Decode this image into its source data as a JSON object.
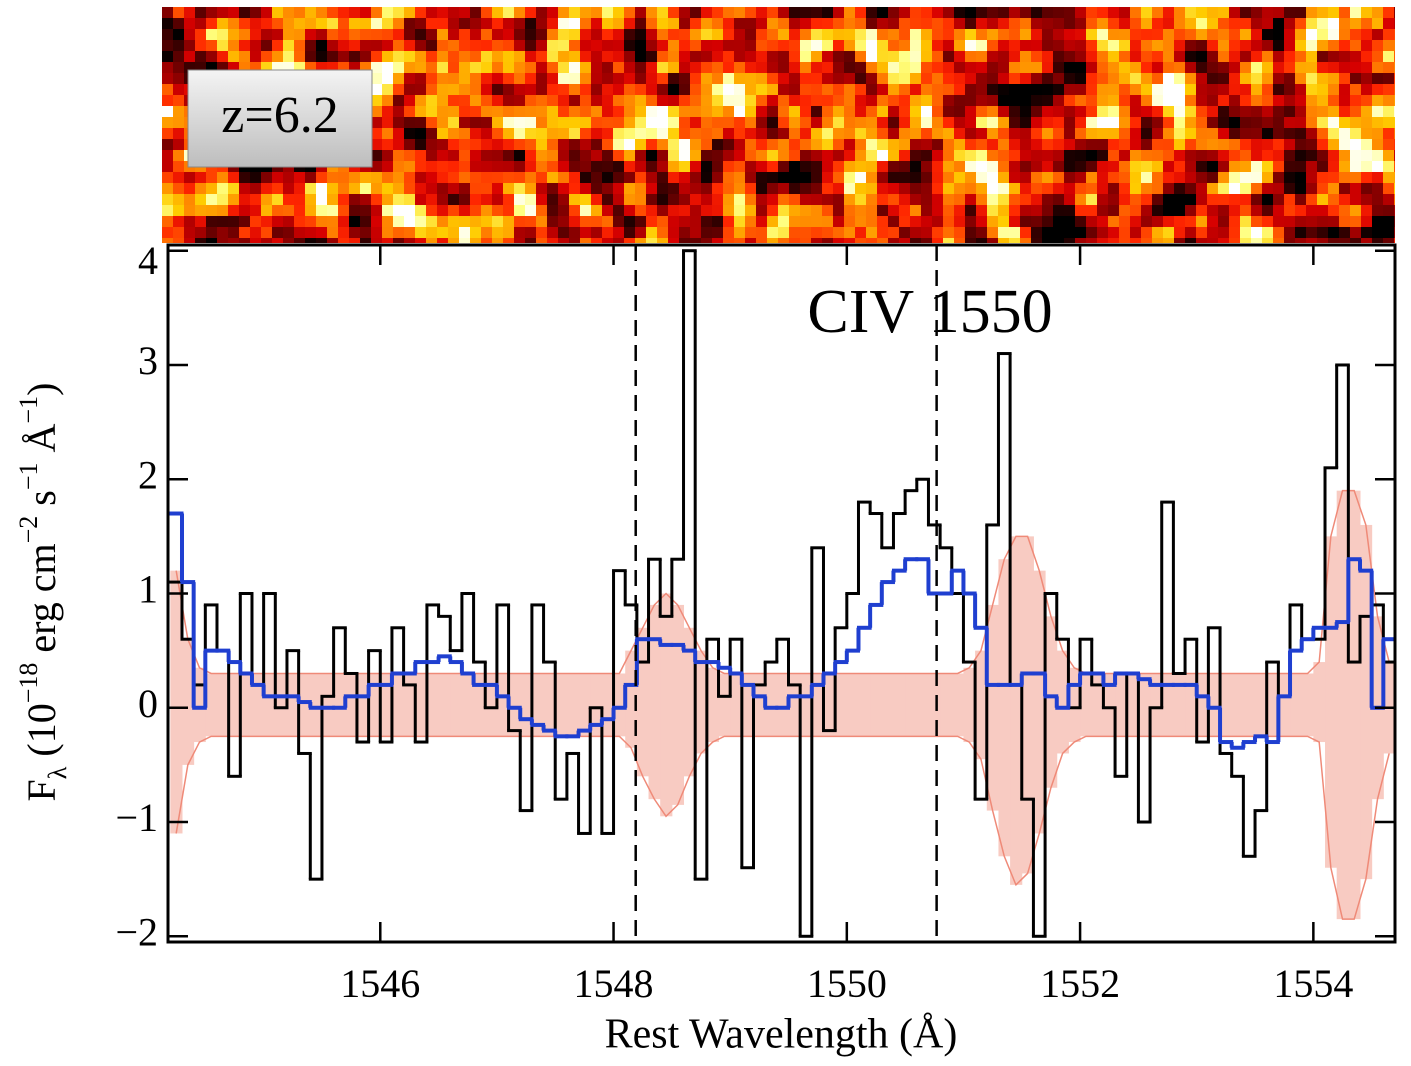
{
  "image": {
    "label": "z=6.2"
  },
  "chart_data": {
    "type": "step",
    "annotation": "CIV 1550",
    "x_label": "Rest Wavelength (Å)",
    "y_label_parts": [
      "F",
      "λ",
      " (10",
      "−18",
      " erg cm",
      "−2",
      " s",
      "−1",
      " Å",
      "−1",
      ")"
    ],
    "xlim": [
      1544.18,
      1554.7
    ],
    "ylim": [
      -2.05,
      4.05
    ],
    "xticks": [
      1546,
      1548,
      1550,
      1552,
      1554
    ],
    "yticks": [
      {
        "value": -2,
        "label": "−2"
      },
      {
        "value": -1,
        "label": "−1"
      },
      0,
      1,
      2,
      3,
      4
    ],
    "reference_lines": [
      1548.19,
      1550.77
    ],
    "x": [
      1544.25,
      1544.35,
      1544.45,
      1544.55,
      1544.65,
      1544.75,
      1544.85,
      1544.95,
      1545.05,
      1545.15,
      1545.25,
      1545.35,
      1545.45,
      1545.55,
      1545.65,
      1545.75,
      1545.85,
      1545.95,
      1546.05,
      1546.15,
      1546.25,
      1546.35,
      1546.45,
      1546.55,
      1546.65,
      1546.75,
      1546.85,
      1546.95,
      1547.05,
      1547.15,
      1547.25,
      1547.35,
      1547.45,
      1547.55,
      1547.65,
      1547.75,
      1547.85,
      1547.95,
      1548.05,
      1548.15,
      1548.25,
      1548.35,
      1548.45,
      1548.55,
      1548.65,
      1548.75,
      1548.85,
      1548.95,
      1549.05,
      1549.15,
      1549.25,
      1549.35,
      1549.45,
      1549.55,
      1549.65,
      1549.75,
      1549.85,
      1549.95,
      1550.05,
      1550.15,
      1550.25,
      1550.35,
      1550.45,
      1550.55,
      1550.65,
      1550.75,
      1550.85,
      1550.95,
      1551.05,
      1551.15,
      1551.25,
      1551.35,
      1551.45,
      1551.55,
      1551.65,
      1551.75,
      1551.85,
      1551.95,
      1552.05,
      1552.15,
      1552.25,
      1552.35,
      1552.45,
      1552.55,
      1552.65,
      1552.75,
      1552.85,
      1552.95,
      1553.05,
      1553.15,
      1553.25,
      1553.35,
      1553.45,
      1553.55,
      1553.65,
      1553.75,
      1553.85,
      1553.95,
      1554.05,
      1554.15,
      1554.25,
      1554.35,
      1554.45,
      1554.55,
      1554.65
    ],
    "band": {
      "fill": "#f8cbc2",
      "edge": "#ef8a78",
      "upper": [
        1.2,
        0.6,
        0.35,
        0.3,
        0.3,
        0.3,
        0.3,
        0.3,
        0.3,
        0.3,
        0.3,
        0.3,
        0.3,
        0.3,
        0.3,
        0.3,
        0.3,
        0.3,
        0.3,
        0.3,
        0.3,
        0.3,
        0.3,
        0.3,
        0.3,
        0.3,
        0.3,
        0.3,
        0.3,
        0.3,
        0.3,
        0.3,
        0.3,
        0.3,
        0.3,
        0.3,
        0.3,
        0.3,
        0.3,
        0.5,
        0.7,
        0.9,
        1.0,
        0.9,
        0.7,
        0.5,
        0.35,
        0.3,
        0.3,
        0.3,
        0.3,
        0.3,
        0.3,
        0.3,
        0.3,
        0.3,
        0.3,
        0.3,
        0.3,
        0.3,
        0.3,
        0.3,
        0.3,
        0.3,
        0.3,
        0.3,
        0.3,
        0.3,
        0.35,
        0.5,
        0.9,
        1.3,
        1.5,
        1.5,
        1.2,
        0.8,
        0.5,
        0.35,
        0.3,
        0.3,
        0.3,
        0.3,
        0.3,
        0.3,
        0.3,
        0.3,
        0.3,
        0.3,
        0.3,
        0.3,
        0.3,
        0.3,
        0.3,
        0.3,
        0.3,
        0.3,
        0.3,
        0.3,
        0.4,
        1.5,
        1.9,
        1.9,
        1.6,
        0.8,
        0.4
      ],
      "lower": [
        -1.1,
        -0.5,
        -0.3,
        -0.25,
        -0.25,
        -0.25,
        -0.25,
        -0.25,
        -0.25,
        -0.25,
        -0.25,
        -0.25,
        -0.25,
        -0.25,
        -0.25,
        -0.25,
        -0.25,
        -0.25,
        -0.25,
        -0.25,
        -0.25,
        -0.25,
        -0.25,
        -0.25,
        -0.25,
        -0.25,
        -0.25,
        -0.25,
        -0.25,
        -0.25,
        -0.25,
        -0.25,
        -0.25,
        -0.25,
        -0.25,
        -0.25,
        -0.25,
        -0.25,
        -0.25,
        -0.35,
        -0.6,
        -0.8,
        -0.95,
        -0.85,
        -0.6,
        -0.4,
        -0.3,
        -0.25,
        -0.25,
        -0.25,
        -0.25,
        -0.25,
        -0.25,
        -0.25,
        -0.25,
        -0.25,
        -0.25,
        -0.25,
        -0.25,
        -0.25,
        -0.25,
        -0.25,
        -0.25,
        -0.25,
        -0.25,
        -0.25,
        -0.25,
        -0.25,
        -0.3,
        -0.45,
        -0.9,
        -1.3,
        -1.55,
        -1.45,
        -1.1,
        -0.7,
        -0.4,
        -0.3,
        -0.25,
        -0.25,
        -0.25,
        -0.25,
        -0.25,
        -0.25,
        -0.25,
        -0.25,
        -0.25,
        -0.25,
        -0.25,
        -0.25,
        -0.25,
        -0.25,
        -0.25,
        -0.25,
        -0.25,
        -0.25,
        -0.25,
        -0.25,
        -0.3,
        -1.4,
        -1.85,
        -1.85,
        -1.5,
        -0.8,
        -0.4
      ]
    },
    "series": [
      {
        "color": "#000000",
        "values": [
          1.1,
          0.6,
          0.2,
          0.9,
          0.5,
          -0.6,
          1.0,
          0.2,
          1.0,
          0.0,
          0.5,
          -0.4,
          -1.5,
          0.1,
          0.7,
          0.3,
          -0.3,
          0.5,
          -0.3,
          0.7,
          0.2,
          -0.3,
          0.9,
          0.8,
          0.5,
          1.0,
          0.4,
          0.0,
          0.9,
          -0.2,
          -0.9,
          0.9,
          0.4,
          -0.8,
          -0.4,
          -1.1,
          0.0,
          -1.1,
          1.2,
          0.9,
          0.4,
          1.3,
          0.8,
          1.3,
          4.0,
          -1.5,
          0.6,
          0.1,
          0.6,
          -1.4,
          0.2,
          0.4,
          0.6,
          0.2,
          -2.0,
          1.4,
          -0.2,
          0.7,
          1.0,
          1.8,
          1.7,
          1.4,
          1.7,
          1.9,
          2.0,
          1.6,
          1.4,
          1.0,
          0.4,
          -0.8,
          1.6,
          3.1,
          0.2,
          -0.8,
          -2.0,
          1.0,
          0.6,
          0.0,
          0.6,
          0.2,
          0.0,
          -0.6,
          0.3,
          -1.0,
          0.0,
          1.8,
          0.3,
          0.6,
          -0.3,
          0.7,
          -0.4,
          -0.6,
          -1.3,
          -0.9,
          0.4,
          0.1,
          0.9,
          0.6,
          0.6,
          2.1,
          3.0,
          0.4,
          0.8,
          0.9,
          0.4
        ]
      },
      {
        "color": "#1f3fd0",
        "values": [
          1.7,
          1.1,
          0.0,
          0.5,
          0.5,
          0.4,
          0.3,
          0.2,
          0.1,
          0.1,
          0.1,
          0.05,
          0.0,
          0.0,
          0.0,
          0.1,
          0.1,
          0.2,
          0.2,
          0.3,
          0.3,
          0.4,
          0.4,
          0.45,
          0.4,
          0.3,
          0.2,
          0.2,
          0.1,
          0.0,
          -0.1,
          -0.15,
          -0.2,
          -0.25,
          -0.25,
          -0.2,
          -0.15,
          -0.1,
          0.0,
          0.2,
          0.6,
          0.6,
          0.55,
          0.55,
          0.5,
          0.4,
          0.4,
          0.35,
          0.3,
          0.2,
          0.1,
          0.0,
          0.0,
          0.1,
          0.1,
          0.2,
          0.3,
          0.4,
          0.5,
          0.7,
          0.9,
          1.1,
          1.2,
          1.3,
          1.3,
          1.0,
          1.0,
          1.2,
          1.0,
          0.7,
          0.2,
          0.2,
          0.2,
          0.3,
          0.3,
          0.1,
          0.0,
          0.2,
          0.3,
          0.3,
          0.2,
          0.3,
          0.3,
          0.25,
          0.2,
          0.2,
          0.2,
          0.2,
          0.1,
          0.0,
          -0.3,
          -0.35,
          -0.3,
          -0.25,
          -0.3,
          0.1,
          0.5,
          0.6,
          0.7,
          0.7,
          0.75,
          1.3,
          1.2,
          0.0,
          0.6
        ]
      }
    ]
  }
}
